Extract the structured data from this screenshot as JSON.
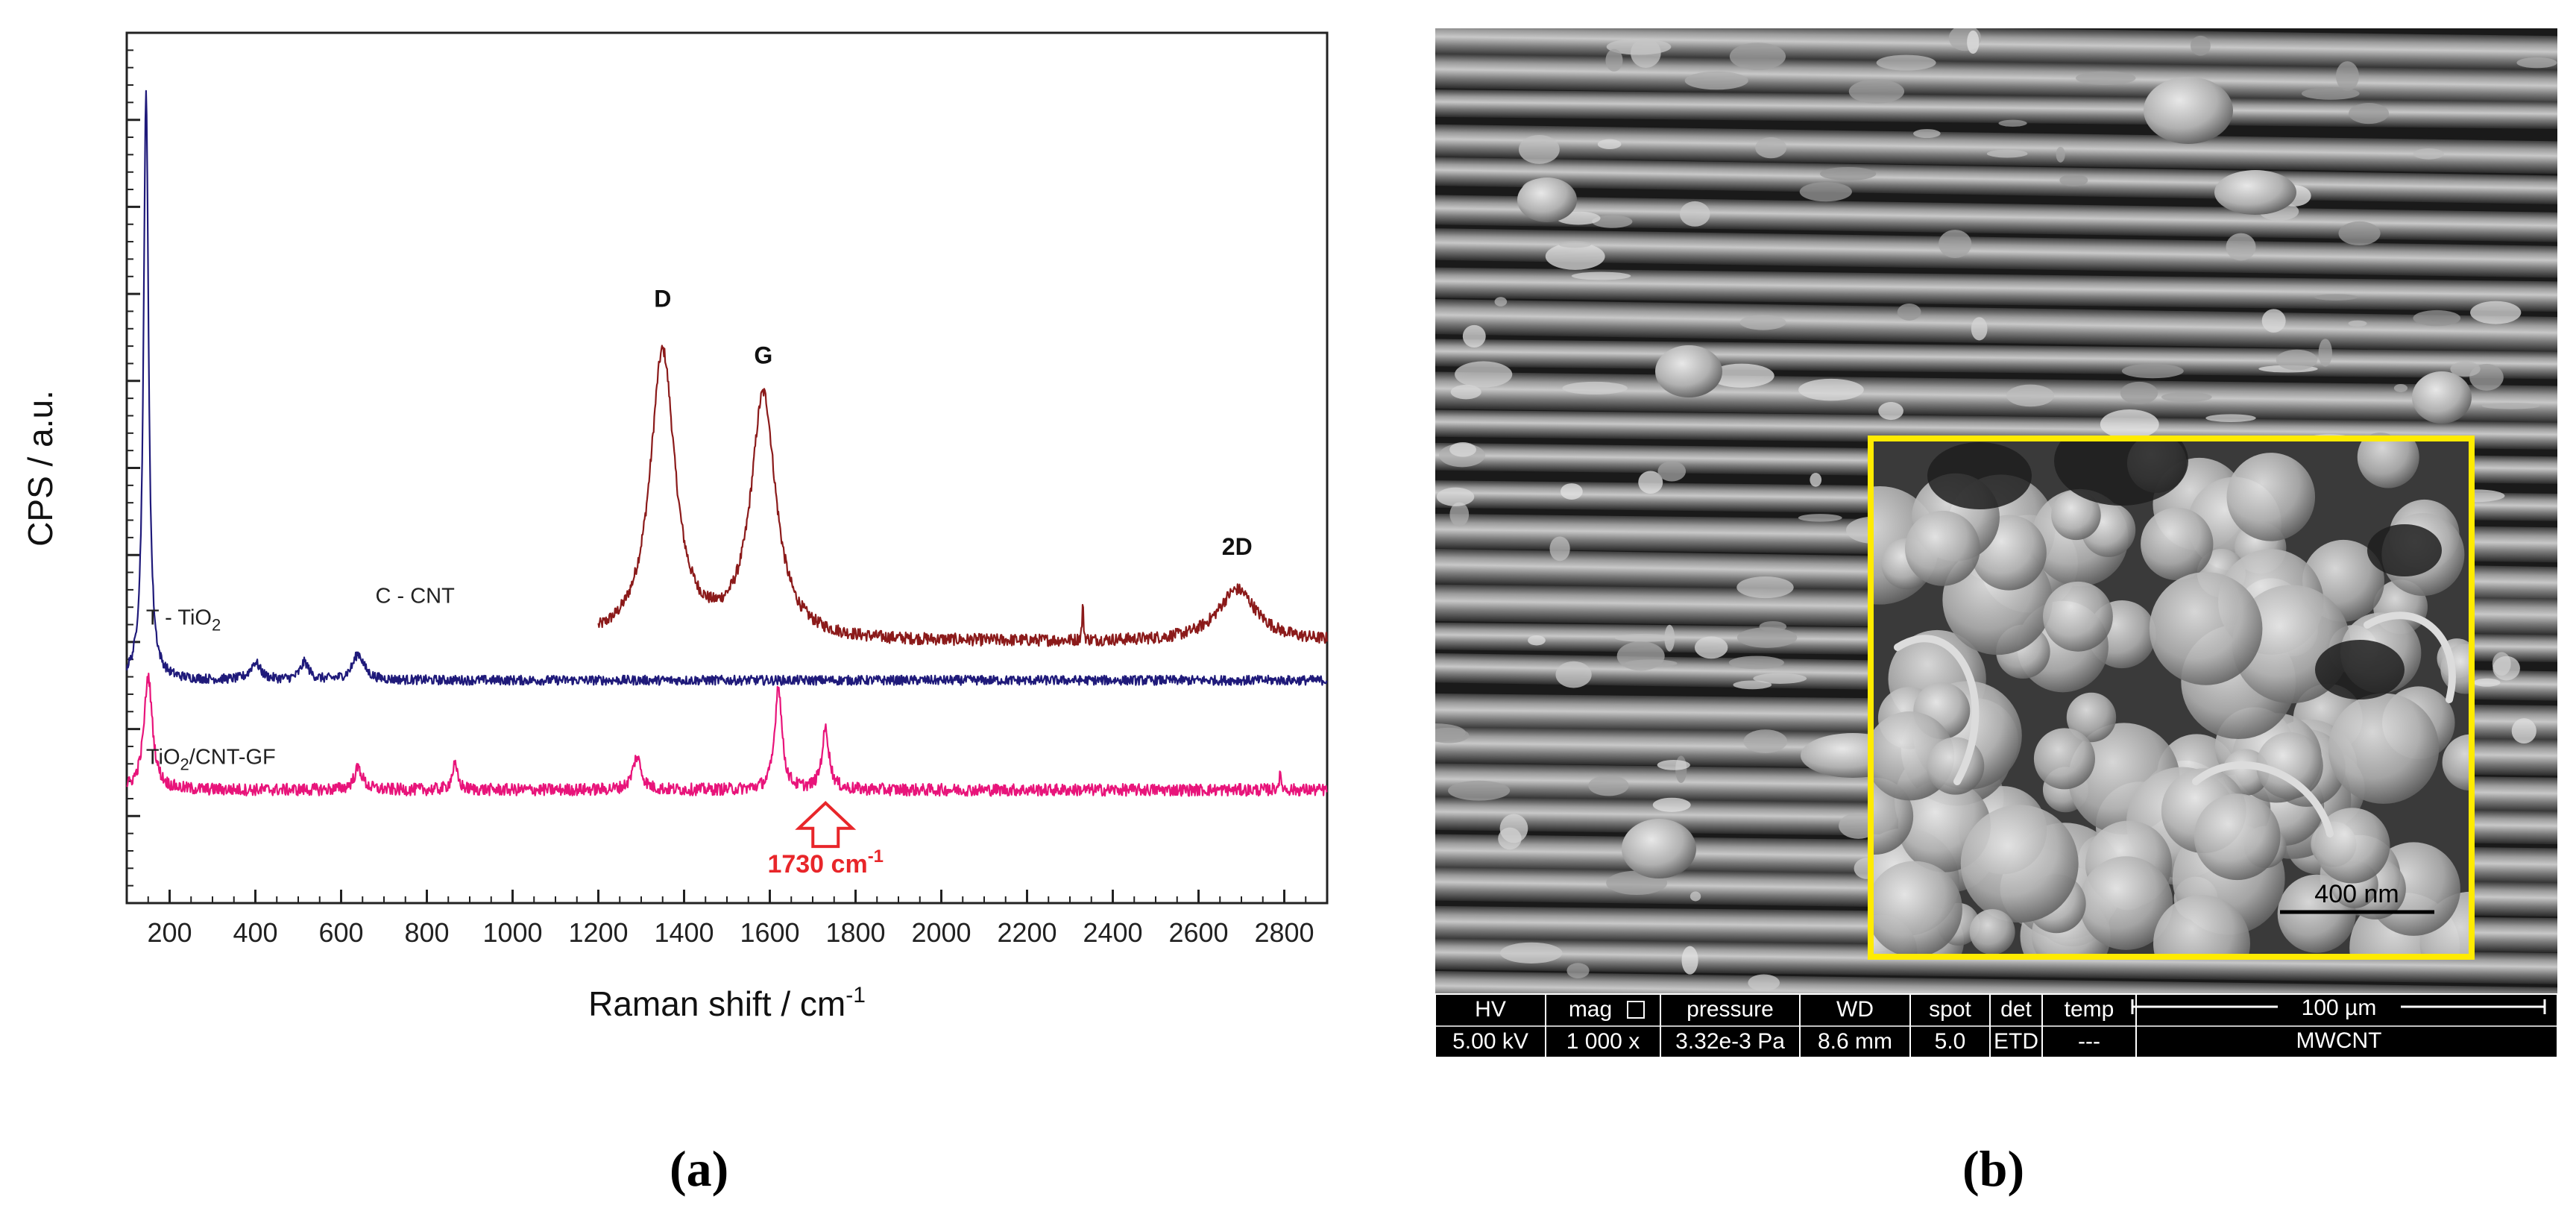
{
  "chart_data": {
    "type": "line",
    "xlabel": "Raman shift / cm",
    "xlabel_sup": "-1",
    "ylabel": "CPS / a.u.",
    "xlim": [
      100,
      2900
    ],
    "ylim": [
      0,
      100
    ],
    "x_ticks": [
      200,
      400,
      600,
      800,
      1000,
      1200,
      1400,
      1600,
      1800,
      2000,
      2200,
      2400,
      2600,
      2800
    ],
    "y_major_ticks": [
      10,
      20,
      30,
      40,
      50,
      60,
      70,
      80,
      90
    ],
    "series": [
      {
        "name": "C - CNT",
        "color": "#8b1a1a",
        "x_range": [
          1200,
          2900
        ],
        "baseline": 30,
        "noise": 0.7,
        "peaks": [
          {
            "x": 1350,
            "height": 33,
            "width": 35
          },
          {
            "x": 1585,
            "height": 28,
            "width": 35
          },
          {
            "x": 2330,
            "height": 4,
            "width": 2
          },
          {
            "x": 2690,
            "height": 6,
            "width": 55
          }
        ]
      },
      {
        "name": "T - TiO2",
        "name_main": "T - TiO",
        "name_sub": "2",
        "color": "#1f1a7a",
        "x_range": [
          100,
          2900
        ],
        "baseline": 25.6,
        "noise": 0.55,
        "peaks": [
          {
            "x": 145,
            "height": 68,
            "width": 7
          },
          {
            "x": 400,
            "height": 2,
            "width": 14
          },
          {
            "x": 515,
            "height": 2,
            "width": 12
          },
          {
            "x": 640,
            "height": 3,
            "width": 16
          }
        ]
      },
      {
        "name": "TiO2/CNT-GF",
        "name_main": "TiO",
        "name_sub": "2",
        "name_rest": "/CNT-GF",
        "color": "#e8147a",
        "x_range": [
          100,
          2900
        ],
        "baseline": 13,
        "noise": 0.7,
        "peaks": [
          {
            "x": 150,
            "height": 13,
            "width": 12
          },
          {
            "x": 640,
            "height": 2.5,
            "width": 12
          },
          {
            "x": 865,
            "height": 2.8,
            "width": 8
          },
          {
            "x": 1290,
            "height": 3.8,
            "width": 12
          },
          {
            "x": 1620,
            "height": 12,
            "width": 10
          },
          {
            "x": 1730,
            "height": 7,
            "width": 10
          },
          {
            "x": 2790,
            "height": 1.5,
            "width": 4
          }
        ]
      }
    ],
    "peak_labels": [
      {
        "text": "D",
        "x": 1350,
        "y": 68.5
      },
      {
        "text": "G",
        "x": 1585,
        "y": 62
      },
      {
        "text": "2D",
        "x": 2690,
        "y": 40
      }
    ],
    "annotation": {
      "text": "1730 cm",
      "sup": "-1",
      "x": 1730,
      "arrow_top": 11.5,
      "arrow_bottom": 6.5,
      "text_y": 3.5,
      "color": "#e8262a"
    }
  },
  "sem": {
    "info_headers": [
      "HV",
      "mag",
      "pressure",
      "WD",
      "spot",
      "det",
      "temp"
    ],
    "info_values": [
      "5.00 kV",
      "1 000 x",
      "3.32e-3 Pa",
      "8.6 mm",
      "5.0",
      "ETD",
      "---"
    ],
    "scale_main": "100 µm",
    "sample_name": "MWCNT",
    "inset_scale": "400 nm",
    "inset_border_color": "#ffeb00"
  },
  "panel_labels": {
    "a": "(a)",
    "b": "(b)"
  }
}
